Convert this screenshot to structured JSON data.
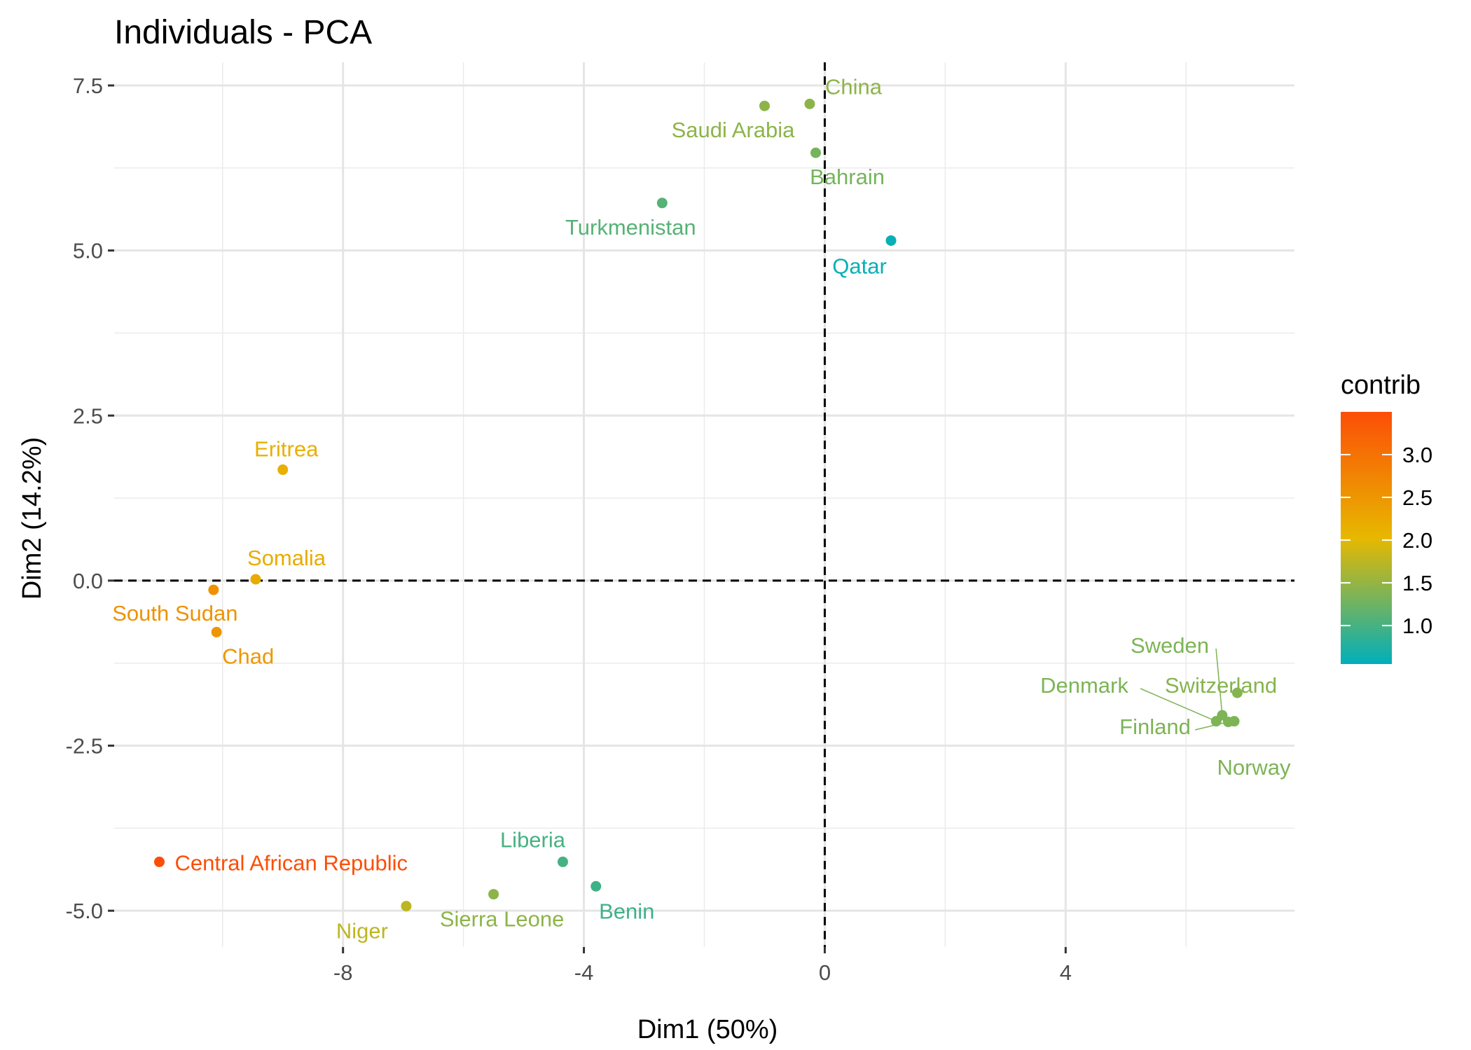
{
  "chart_data": {
    "type": "scatter",
    "title": "Individuals - PCA",
    "xlabel": "Dim1 (50%)",
    "ylabel": "Dim2 (14.2%)",
    "xlim": [
      -11.8,
      7.8
    ],
    "ylim": [
      -5.55,
      7.85
    ],
    "x_ticks": [
      -8,
      -4,
      0,
      4
    ],
    "x_tick_labels": [
      "-8",
      "-4",
      "0",
      "4"
    ],
    "y_ticks": [
      -5,
      -2.5,
      0,
      2.5,
      5,
      7.5
    ],
    "y_tick_labels": [
      "-5.0",
      "-2.5",
      "0.0",
      "2.5",
      "5.0",
      "7.5"
    ],
    "grid": true,
    "reference_lines": {
      "x": 0,
      "y": 0,
      "style": "dashed"
    },
    "legend": {
      "title": "contrib",
      "position": "right",
      "min": 0.55,
      "max": 3.5,
      "ticks": [
        1.0,
        1.5,
        2.0,
        2.5,
        3.0
      ],
      "tick_labels": [
        "1.0",
        "1.5",
        "2.0",
        "2.5",
        "3.0"
      ],
      "gradient_colors": [
        "#00AFBB",
        "#E7B800",
        "#FC4E07"
      ]
    },
    "points": [
      {
        "name": "China",
        "x": -0.25,
        "y": 7.22,
        "contrib": 1.45
      },
      {
        "name": "Saudi Arabia",
        "x": -1.0,
        "y": 7.19,
        "contrib": 1.45
      },
      {
        "name": "Bahrain",
        "x": -0.15,
        "y": 6.48,
        "contrib": 1.3
      },
      {
        "name": "Turkmenistan",
        "x": -2.7,
        "y": 5.72,
        "contrib": 1.1
      },
      {
        "name": "Qatar",
        "x": 1.1,
        "y": 5.15,
        "contrib": 0.6
      },
      {
        "name": "Eritrea",
        "x": -9.0,
        "y": 1.68,
        "contrib": 2.15
      },
      {
        "name": "Somalia",
        "x": -9.45,
        "y": 0.02,
        "contrib": 2.2
      },
      {
        "name": "South Sudan",
        "x": -10.15,
        "y": -0.14,
        "contrib": 2.55
      },
      {
        "name": "Chad",
        "x": -10.1,
        "y": -0.78,
        "contrib": 2.5
      },
      {
        "name": "Sweden",
        "x": 6.6,
        "y": -2.04,
        "contrib": 1.35
      },
      {
        "name": "Switzerland",
        "x": 6.85,
        "y": -1.7,
        "contrib": 1.4
      },
      {
        "name": "Denmark",
        "x": 6.5,
        "y": -2.13,
        "contrib": 1.35
      },
      {
        "name": "Finland",
        "x": 6.7,
        "y": -2.14,
        "contrib": 1.35
      },
      {
        "name": "Norway",
        "x": 6.8,
        "y": -2.13,
        "contrib": 1.35
      },
      {
        "name": "Central African Republic",
        "x": -11.05,
        "y": -4.26,
        "contrib": 3.5
      },
      {
        "name": "Liberia",
        "x": -4.35,
        "y": -4.26,
        "contrib": 1.0
      },
      {
        "name": "Benin",
        "x": -3.8,
        "y": -4.63,
        "contrib": 0.95
      },
      {
        "name": "Sierra Leone",
        "x": -5.5,
        "y": -4.75,
        "contrib": 1.45
      },
      {
        "name": "Niger",
        "x": -6.95,
        "y": -4.93,
        "contrib": 1.75
      }
    ]
  }
}
